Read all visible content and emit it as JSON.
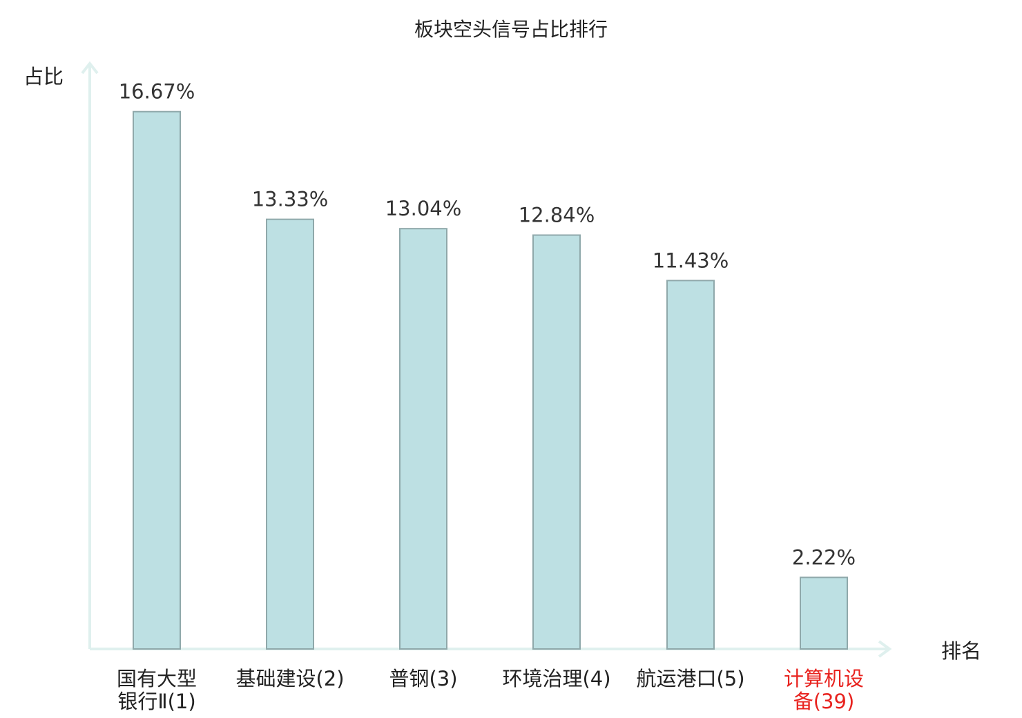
{
  "chart_data": {
    "type": "bar",
    "title": "板块空头信号占比排行",
    "ylabel": "占比",
    "xlabel": "排名",
    "unit": "%",
    "ylim": [
      0,
      18.27
    ],
    "grid": false,
    "legend": "none",
    "categories": [
      {
        "lines": [
          "国有大型",
          "银行Ⅱ(1)"
        ],
        "highlight": false
      },
      {
        "lines": [
          "基础建设(2)"
        ],
        "highlight": false
      },
      {
        "lines": [
          "普钢(3)"
        ],
        "highlight": false
      },
      {
        "lines": [
          "环境治理(4)"
        ],
        "highlight": false
      },
      {
        "lines": [
          "航运港口(5)"
        ],
        "highlight": false
      },
      {
        "lines": [
          "计算机设",
          "备(39)"
        ],
        "highlight": true
      }
    ],
    "values": [
      16.67,
      13.33,
      13.04,
      12.84,
      11.43,
      2.22
    ],
    "value_labels": [
      "16.67%",
      "13.33%",
      "13.04%",
      "12.84%",
      "11.43%",
      "2.22%"
    ],
    "colors": {
      "bar_fill": "#bde0e3",
      "bar_stroke": "#8fa8aa",
      "axis": "#dff0ee",
      "text": "#333333",
      "highlight_text": "#e8231f"
    }
  }
}
